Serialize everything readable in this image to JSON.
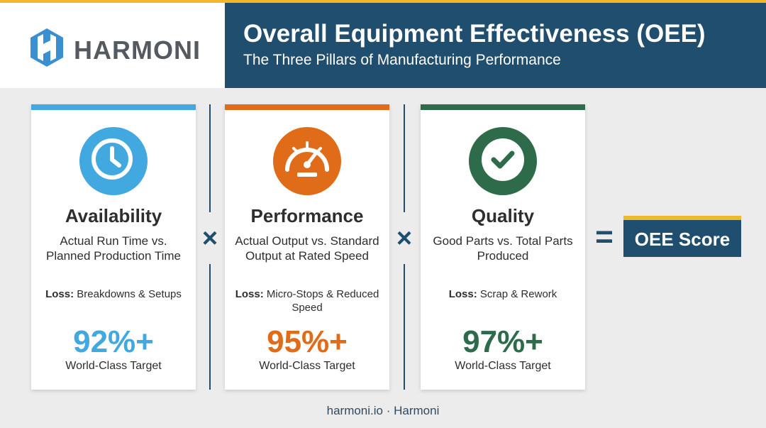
{
  "brand": {
    "name": "HARMONI",
    "colors": {
      "navy": "#1f4e6e",
      "gold": "#f1b82d",
      "logo_blue": "#3a8fd1"
    }
  },
  "header": {
    "title": "Overall Equipment Effectiveness (OEE)",
    "subtitle": "The Three Pillars of Manufacturing Performance"
  },
  "pillars": [
    {
      "title": "Availability",
      "description": "Actual Run Time vs. Planned Production Time",
      "loss_label": "Loss:",
      "loss_text": "Breakdowns & Setups",
      "target": "92%+",
      "target_label": "World-Class Target",
      "icon": "clock-icon",
      "color": "#42a8e0"
    },
    {
      "title": "Performance",
      "description": "Actual Output vs. Standard Output at Rated Speed",
      "loss_label": "Loss:",
      "loss_text": "Micro-Stops & Reduced Speed",
      "target": "95%+",
      "target_label": "World-Class Target",
      "icon": "speedometer-icon",
      "color": "#e06c1a"
    },
    {
      "title": "Quality",
      "description": "Good Parts vs. Total Parts Produced",
      "loss_label": "Loss:",
      "loss_text": "Scrap & Rework",
      "target": "97%+",
      "target_label": "World-Class Target",
      "icon": "checkmark-icon",
      "color": "#2e6b4a"
    }
  ],
  "operators": {
    "multiply": "×",
    "equals": "="
  },
  "result": {
    "label": "OEE Score"
  },
  "footer": {
    "text": "harmoni.io · Harmoni"
  }
}
